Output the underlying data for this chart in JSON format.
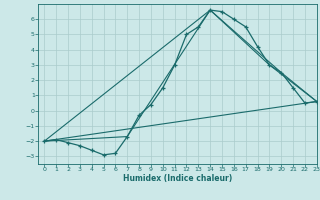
{
  "xlabel": "Humidex (Indice chaleur)",
  "bg_color": "#cce8e8",
  "line_color": "#1a6b6b",
  "grid_color": "#aacccc",
  "xlim": [
    -0.5,
    23
  ],
  "ylim": [
    -3.5,
    7.0
  ],
  "yticks": [
    -3,
    -2,
    -1,
    0,
    1,
    2,
    3,
    4,
    5,
    6
  ],
  "xticks": [
    0,
    1,
    2,
    3,
    4,
    5,
    6,
    7,
    8,
    9,
    10,
    11,
    12,
    13,
    14,
    15,
    16,
    17,
    18,
    19,
    20,
    21,
    22,
    23
  ],
  "main_series": {
    "x": [
      0,
      1,
      2,
      3,
      4,
      5,
      6,
      7,
      8,
      9,
      10,
      11,
      12,
      13,
      14,
      15,
      16,
      17,
      18,
      19,
      20,
      21,
      22,
      23
    ],
    "y": [
      -2.0,
      -1.9,
      -2.1,
      -2.3,
      -2.6,
      -2.9,
      -2.8,
      -1.7,
      -0.3,
      0.4,
      1.5,
      3.0,
      5.0,
      5.5,
      6.6,
      6.5,
      6.0,
      5.5,
      4.2,
      3.0,
      2.5,
      1.5,
      0.5,
      0.6
    ]
  },
  "straight_lines": [
    {
      "x": [
        0,
        23
      ],
      "y": [
        -2.0,
        0.6
      ]
    },
    {
      "x": [
        0,
        14,
        20,
        23
      ],
      "y": [
        -2.0,
        6.6,
        2.5,
        0.6
      ]
    },
    {
      "x": [
        0,
        7,
        14,
        19,
        23
      ],
      "y": [
        -2.0,
        -1.7,
        6.6,
        3.0,
        0.6
      ]
    }
  ]
}
